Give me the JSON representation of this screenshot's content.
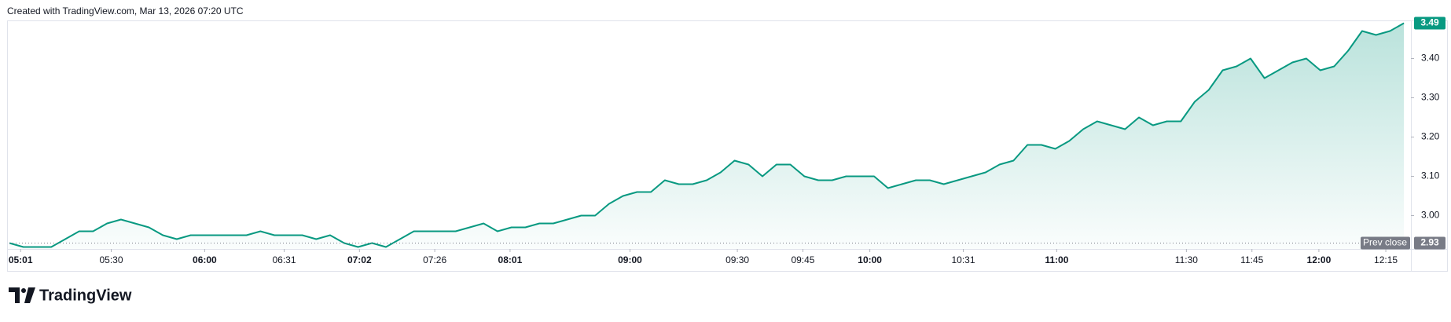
{
  "header": "Created with TradingView.com, Mar 13, 2026 07:20 UTC",
  "logo": "TradingView",
  "chart_data": {
    "type": "area",
    "series": [
      {
        "color": "#089981",
        "values": [
          2.93,
          2.92,
          2.92,
          2.92,
          2.94,
          2.96,
          2.96,
          2.98,
          2.99,
          2.98,
          2.97,
          2.95,
          2.94,
          2.95,
          2.95,
          2.95,
          2.95,
          2.95,
          2.96,
          2.95,
          2.95,
          2.95,
          2.94,
          2.95,
          2.93,
          2.92,
          2.93,
          2.92,
          2.94,
          2.96,
          2.96,
          2.96,
          2.96,
          2.97,
          2.98,
          2.96,
          2.97,
          2.97,
          2.98,
          2.98,
          2.99,
          3.0,
          3.0,
          3.03,
          3.05,
          3.06,
          3.06,
          3.09,
          3.08,
          3.08,
          3.09,
          3.11,
          3.14,
          3.13,
          3.1,
          3.13,
          3.13,
          3.1,
          3.09,
          3.09,
          3.1,
          3.1,
          3.1,
          3.07,
          3.08,
          3.09,
          3.09,
          3.08,
          3.09,
          3.1,
          3.11,
          3.13,
          3.14,
          3.18,
          3.18,
          3.17,
          3.19,
          3.22,
          3.24,
          3.23,
          3.22,
          3.25,
          3.23,
          3.24,
          3.24,
          3.29,
          3.32,
          3.37,
          3.38,
          3.4,
          3.35,
          3.37,
          3.39,
          3.4,
          3.37,
          3.38,
          3.42,
          3.47,
          3.46,
          3.47,
          3.49
        ]
      }
    ],
    "xlim": [
      0,
      100.5
    ],
    "xticks": [
      {
        "value": 0.8,
        "label": "05:01",
        "bold": true
      },
      {
        "value": 7.3,
        "label": "05:30"
      },
      {
        "value": 14,
        "label": "06:00",
        "bold": true
      },
      {
        "value": 19.7,
        "label": "06:31"
      },
      {
        "value": 25.1,
        "label": "07:02",
        "bold": true
      },
      {
        "value": 30.5,
        "label": "07:26"
      },
      {
        "value": 35.9,
        "label": "08:01",
        "bold": true
      },
      {
        "value": 44.5,
        "label": "09:00",
        "bold": true
      },
      {
        "value": 52.2,
        "label": "09:30"
      },
      {
        "value": 56.9,
        "label": "09:45"
      },
      {
        "value": 61.7,
        "label": "10:00",
        "bold": true
      },
      {
        "value": 68.4,
        "label": "10:31"
      },
      {
        "value": 75.1,
        "label": "11:00",
        "bold": true
      },
      {
        "value": 84.4,
        "label": "11:30"
      },
      {
        "value": 89.1,
        "label": "11:45"
      },
      {
        "value": 93.9,
        "label": "12:00",
        "bold": true
      },
      {
        "value": 98.7,
        "label": "12:15"
      }
    ],
    "ylim": [
      2.915,
      3.497
    ],
    "yticks": [
      {
        "value": 3,
        "label": "3.00"
      },
      {
        "value": 3.1,
        "label": "3.10"
      },
      {
        "value": 3.2,
        "label": "3.20"
      },
      {
        "value": 3.3,
        "label": "3.30"
      },
      {
        "value": 3.4,
        "label": "3.40"
      }
    ],
    "prev_close": 2.93,
    "prev_close_label": "Prev close"
  }
}
